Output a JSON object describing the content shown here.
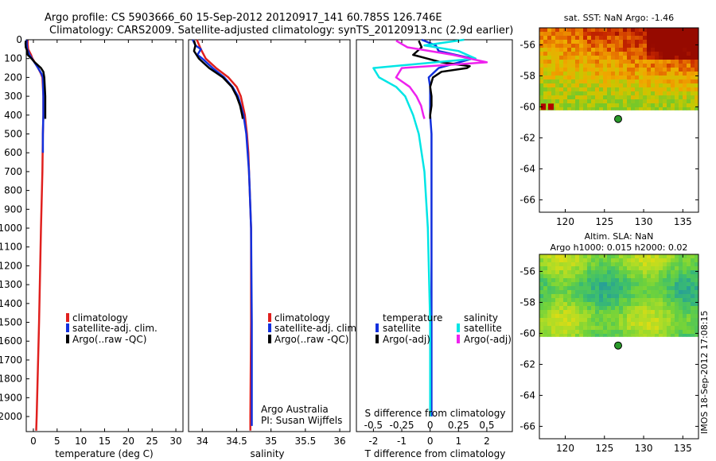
{
  "header": {
    "line1": "Argo profile: CS 5903666_60 15-Sep-2012 20120917_141 60.785S 126.746E",
    "line2": "Climatology: CARS2009. Satellite-adjusted climatology: synTS_20120913.nc (2.9d earlier)"
  },
  "credit": "Argo Australia",
  "pi": "PI: Susan Wijffels",
  "watermark": "IMOS 18-Sep-2012 17:08:15",
  "colors": {
    "climatology": "#e0201e",
    "satellite_clim": "#1230dd",
    "argo_raw": "#000000",
    "s_satellite": "#00e5e5",
    "s_argo": "#ee22ee",
    "sea_fill": "#ffffff",
    "float_marker": "#2a9a2a"
  },
  "legend_profiles": {
    "climatology": "climatology",
    "satellite": "satellite-adj. clim.",
    "argo": "Argo(..raw -QC)"
  },
  "legend_diff": {
    "temperature_header": "temperature",
    "salinity_header": "salinity",
    "t_satellite": "satellite",
    "t_argo": "Argo(-adj)",
    "s_satellite": "satellite",
    "s_argo": "Argo(-adj)"
  },
  "maps": {
    "sst": {
      "title": "sat. SST: NaN Argo: -1.46",
      "xticks": [
        120,
        125,
        130,
        135
      ],
      "yticks": [
        -56,
        -58,
        -60,
        -62,
        -64,
        -66
      ],
      "float_lon": 126.746,
      "float_lat": -60.785,
      "xlim": [
        116.7,
        137
      ],
      "ylim": [
        -66.8,
        -54.9
      ],
      "data_lat_min": -60.2
    },
    "sla": {
      "title1": "Altim. SLA: NaN",
      "title2": "Argo h1000: 0.015 h2000: 0.02",
      "xticks": [
        120,
        125,
        130,
        135
      ],
      "yticks": [
        -56,
        -58,
        -60,
        -62,
        -64,
        -66
      ],
      "float_lon": 126.746,
      "float_lat": -60.785,
      "xlim": [
        116.7,
        137
      ],
      "ylim": [
        -66.8,
        -54.9
      ],
      "data_lat_min": -60.2
    }
  },
  "chart_data": [
    {
      "type": "line",
      "id": "temperature",
      "xlabel": "temperature (deg C)",
      "ylabel": "",
      "xlim": [
        -1.5,
        31.5
      ],
      "ylim": [
        2080,
        0
      ],
      "xticks": [
        0,
        5,
        10,
        15,
        20,
        25,
        30
      ],
      "yticks": [
        0,
        100,
        200,
        300,
        400,
        500,
        600,
        700,
        800,
        900,
        1000,
        1100,
        1200,
        1300,
        1400,
        1500,
        1600,
        1700,
        1800,
        1900,
        2000
      ],
      "series": [
        {
          "name": "climatology",
          "color": "#e0201e",
          "depth": [
            0,
            25,
            50,
            80,
            100,
            150,
            180,
            200,
            300,
            400,
            500,
            700,
            1000,
            1500,
            2000,
            2075
          ],
          "values": [
            -1.2,
            -1.2,
            -1.1,
            -0.5,
            -0.2,
            1.0,
            1.6,
            1.9,
            2.1,
            2.1,
            2.0,
            1.9,
            1.6,
            1.2,
            0.7,
            0.6
          ]
        },
        {
          "name": "satellite-adj. clim.",
          "color": "#1230dd",
          "depth": [
            0,
            25,
            50,
            80,
            100,
            150,
            180,
            200,
            300,
            400,
            500,
            600
          ],
          "values": [
            -1.4,
            -1.4,
            -1.3,
            -0.8,
            -0.3,
            1.0,
            1.7,
            2.0,
            2.1,
            2.1,
            2.0,
            2.0
          ]
        },
        {
          "name": "Argo(..raw -QC)",
          "color": "#000000",
          "depth": [
            5,
            20,
            40,
            60,
            80,
            100,
            120,
            150,
            170,
            200,
            250,
            300,
            350,
            400,
            420
          ],
          "values": [
            -1.6,
            -1.65,
            -1.6,
            -1.3,
            -1.2,
            -0.4,
            0.3,
            1.6,
            2.1,
            2.3,
            2.4,
            2.5,
            2.5,
            2.5,
            2.5
          ]
        }
      ]
    },
    {
      "type": "line",
      "id": "salinity",
      "xlabel": "salinity",
      "ylabel": "",
      "xlim": [
        33.8,
        36.15
      ],
      "ylim": [
        2080,
        0
      ],
      "xticks": [
        34,
        34.5,
        35,
        35.5,
        36
      ],
      "series": [
        {
          "name": "climatology",
          "color": "#e0201e",
          "depth": [
            0,
            50,
            100,
            150,
            200,
            250,
            300,
            400,
            500,
            600,
            700,
            800,
            1000,
            1200,
            1500,
            2000,
            2075
          ],
          "values": [
            33.92,
            33.98,
            34.05,
            34.2,
            34.38,
            34.5,
            34.56,
            34.62,
            34.65,
            34.67,
            34.68,
            34.69,
            34.71,
            34.71,
            34.71,
            34.7,
            34.7
          ]
        },
        {
          "name": "satellite-adj. clim.",
          "color": "#1230dd",
          "depth": [
            0,
            30,
            50,
            80,
            100,
            150,
            200,
            250,
            300,
            400,
            500,
            600,
            700,
            800,
            1000,
            1500,
            2000,
            2050
          ],
          "values": [
            33.86,
            33.9,
            33.98,
            33.93,
            34.0,
            34.15,
            34.32,
            34.44,
            34.52,
            34.6,
            34.64,
            34.66,
            34.68,
            34.69,
            34.71,
            34.72,
            34.72,
            34.72
          ]
        },
        {
          "name": "Argo(..raw -QC)",
          "color": "#000000",
          "depth": [
            5,
            30,
            60,
            100,
            150,
            200,
            250,
            300,
            350,
            400,
            420
          ],
          "values": [
            33.88,
            33.9,
            33.88,
            33.95,
            34.1,
            34.3,
            34.43,
            34.5,
            34.55,
            34.58,
            34.59
          ]
        }
      ]
    },
    {
      "type": "line",
      "id": "difference",
      "xlabel": "T difference from climatology",
      "top_xlabel": "S difference from climatology",
      "xlim": [
        -2.6,
        2.9
      ],
      "ylim": [
        2080,
        0
      ],
      "xticks": [
        -2,
        -1,
        0,
        1,
        2
      ],
      "s_ticks": [
        -0.5,
        -0.25,
        0,
        0.25,
        0.5
      ],
      "s_tick_labels": [
        "-0.5",
        "-0.25",
        "0",
        "0.25",
        "0.5"
      ],
      "series": [
        {
          "name": "T satellite",
          "color": "#1230dd",
          "depth": [
            0,
            30,
            60,
            100,
            150,
            200,
            250,
            300,
            400,
            500,
            700,
            1000,
            1500,
            2000
          ],
          "values": [
            -0.3,
            0.2,
            0.3,
            1.5,
            0.3,
            -0.05,
            0.0,
            0.0,
            0.0,
            0.05,
            0.05,
            0.05,
            0.05,
            0.05
          ]
        },
        {
          "name": "T Argo(-adj)",
          "color": "#000000",
          "depth": [
            5,
            40,
            80,
            100,
            120,
            140,
            150,
            170,
            200,
            250,
            300,
            350,
            400,
            420
          ],
          "values": [
            -0.4,
            -0.3,
            -0.6,
            -0.1,
            0.4,
            1.4,
            1.3,
            0.4,
            0.1,
            0.0,
            0.05,
            0.05,
            0.0,
            0.0
          ]
        },
        {
          "name": "S satellite",
          "color": "#00e5e5",
          "depth": [
            0,
            30,
            60,
            100,
            150,
            200,
            250,
            300,
            400,
            500,
            700,
            1000,
            1500,
            1800,
            2000
          ],
          "values": [
            0.3,
            -0.05,
            0.25,
            0.4,
            -0.5,
            -0.45,
            -0.3,
            -0.22,
            -0.15,
            -0.1,
            -0.05,
            -0.02,
            0.0,
            0.0,
            0.0
          ]
        },
        {
          "name": "S Argo(-adj)",
          "color": "#ee22ee",
          "depth": [
            5,
            40,
            80,
            120,
            150,
            200,
            250,
            300,
            350,
            400,
            420
          ],
          "values": [
            -0.3,
            -0.2,
            0.2,
            0.5,
            -0.25,
            -0.3,
            -0.18,
            -0.12,
            -0.08,
            -0.06,
            -0.05
          ]
        }
      ]
    }
  ]
}
